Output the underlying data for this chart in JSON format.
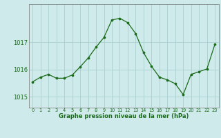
{
  "x": [
    0,
    1,
    2,
    3,
    4,
    5,
    6,
    7,
    8,
    9,
    10,
    11,
    12,
    13,
    14,
    15,
    16,
    17,
    18,
    19,
    20,
    21,
    22,
    23
  ],
  "y": [
    1015.55,
    1015.72,
    1015.82,
    1015.68,
    1015.68,
    1015.8,
    1016.1,
    1016.42,
    1016.82,
    1017.18,
    1017.82,
    1017.88,
    1017.72,
    1017.32,
    1016.62,
    1016.12,
    1015.72,
    1015.62,
    1015.48,
    1015.08,
    1015.82,
    1015.92,
    1016.02,
    1016.92
  ],
  "line_color": "#1a6b1a",
  "marker_color": "#1a6b1a",
  "bg_color": "#ceeaea",
  "grid_color": "#aacece",
  "title": "Graphe pression niveau de la mer (hPa)",
  "ylabel_ticks": [
    1015,
    1016,
    1017
  ],
  "ylim": [
    1014.6,
    1018.4
  ],
  "xlim": [
    -0.5,
    23.5
  ]
}
